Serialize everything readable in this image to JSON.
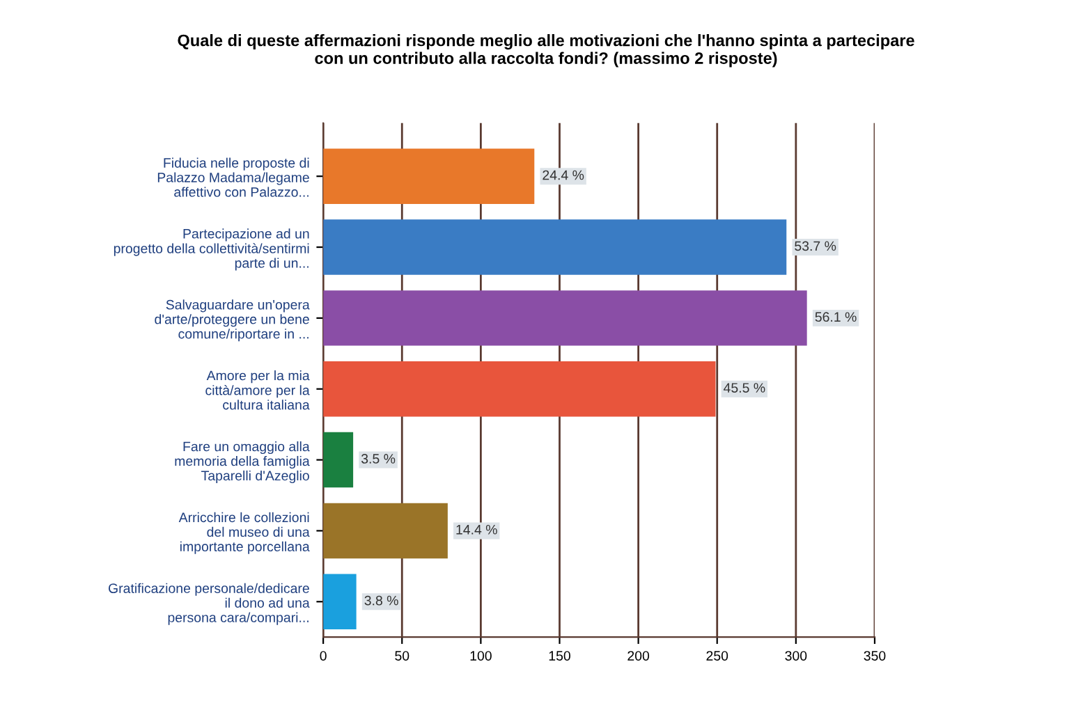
{
  "chart_data": {
    "type": "bar",
    "orientation": "horizontal",
    "title": "Quale di queste affermazioni risponde meglio alle motivazioni che l'hanno spinta a partecipare\ncon un contributo alla raccolta fondi? (massimo 2 risposte)",
    "categories": [
      "Fiducia nelle proposte di\nPalazzo Madama/legame\naffettivo con Palazzo...",
      "Partecipazione ad un\nprogetto della collettività/sentirmi\nparte di un...",
      "Salvaguardare un'opera\nd'arte/proteggere un bene\ncomune/riportare in ...",
      "Amore per la mia\ncittà/amore per la\ncultura italiana",
      "Fare un omaggio alla\nmemoria della famiglia\nTaparelli d'Azeglio",
      "Arricchire le collezioni\ndel museo di una\nimportante porcellana",
      "Gratificazione personale/dedicare\nil dono ad una\npersona cara/compari..."
    ],
    "values": [
      134,
      294,
      307,
      249,
      19,
      79,
      21
    ],
    "colors": [
      "#e8782a",
      "#3a7cc4",
      "#8a4ea6",
      "#e8553c",
      "#1a8040",
      "#9a7428",
      "#1aa0de"
    ],
    "annotations": [
      {
        "text": "24.4 %",
        "x": 134,
        "y": "Fiducia nelle proposte di\nPalazzo Madama/legame\naffettivo con Palazzo..."
      },
      {
        "text": "53.7 %",
        "x": 294,
        "y": "Partecipazione ad un\nprogetto della collettività/sentirmi\nparte di un..."
      },
      {
        "text": "56.1 %",
        "x": 307,
        "y": "Salvaguardare un'opera\nd'arte/proteggere un bene\ncomune/riportare in ..."
      },
      {
        "text": "45.5 %",
        "x": 249,
        "y": "Amore per la mia\ncittà/amore per la\ncultura italiana"
      },
      {
        "text": "3.5 %",
        "x": 19,
        "y": "Fare un omaggio alla\nmemoria della famiglia\nTaparelli d'Azeglio"
      },
      {
        "text": "14.4 %",
        "x": 79,
        "y": "Arricchire le collezioni\ndel museo di una\nimportante porcellana"
      },
      {
        "text": "3.8 %",
        "x": 21,
        "y": "Gratificazione personale/dedicare\nil dono ad una\npersona cara/compari..."
      }
    ],
    "xlim": [
      0,
      350
    ],
    "xticks": [
      0,
      50,
      100,
      150,
      200,
      250,
      300,
      350
    ],
    "grid": "x"
  }
}
